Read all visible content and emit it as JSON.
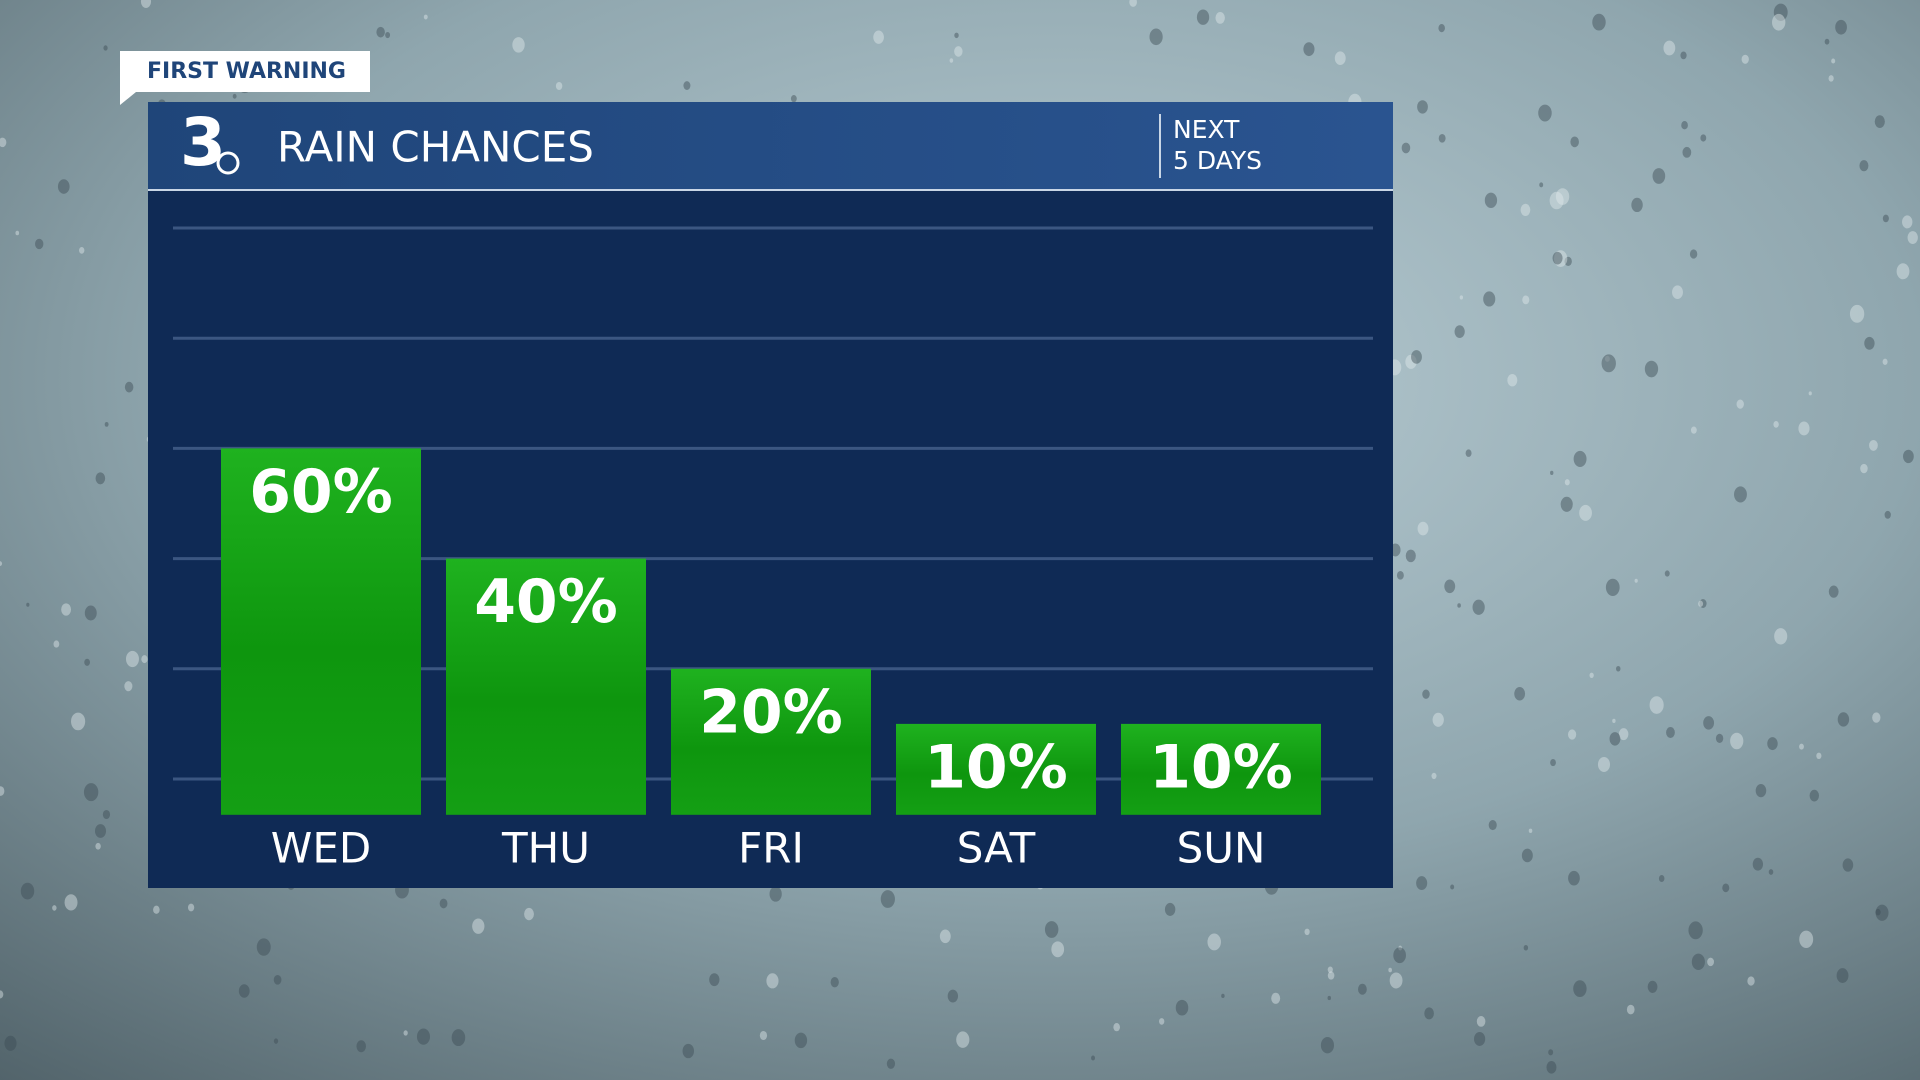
{
  "chart_data": {
    "type": "bar",
    "tag": "FIRST WARNING",
    "logo": "3",
    "title": "RAIN CHANCES",
    "subtitle_lines": [
      "NEXT",
      "5 DAYS"
    ],
    "categories": [
      "WED",
      "THU",
      "FRI",
      "SAT",
      "SUN"
    ],
    "values": [
      60,
      40,
      20,
      10,
      10
    ],
    "value_labels": [
      "60%",
      "40%",
      "20%",
      "10%",
      "10%"
    ],
    "color": "#0c9a0c",
    "ylim": [
      -6.5,
      100
    ],
    "yticks": [
      0,
      20,
      40,
      60,
      80,
      100
    ],
    "grid": true
  }
}
